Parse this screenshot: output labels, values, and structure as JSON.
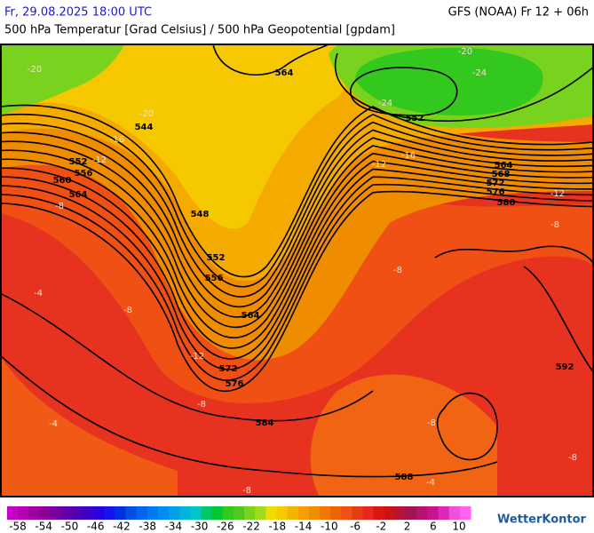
{
  "header": {
    "datetime": "Fr, 29.08.2025 18:00 UTC",
    "model": "GFS (NOAA) Fr 12 + 06h",
    "subtitle": "500 hPa Temperatur [Grad Celsius] / 500 hPa Geopotential [gpdam]"
  },
  "map": {
    "contour_labels": [
      "564",
      "544",
      "552",
      "552",
      "556",
      "560",
      "564",
      "548",
      "552",
      "556",
      "564",
      "572",
      "576",
      "584",
      "588",
      "564",
      "568",
      "572",
      "576",
      "580",
      "592"
    ],
    "temperature_labels": [
      "-20",
      "-24",
      "-24",
      "-20",
      "-20",
      "-16",
      "-12",
      "-12",
      "-16",
      "-12",
      "-8",
      "-8",
      "-4",
      "-8",
      "-8",
      "-8",
      "-4",
      "-8",
      "-8",
      "-4",
      "-8",
      "-12"
    ]
  },
  "colorbar": {
    "colors": [
      "#c800c8",
      "#b400b4",
      "#a000a0",
      "#8c0096",
      "#7800a0",
      "#6400aa",
      "#5000b4",
      "#3c00c8",
      "#2800dc",
      "#1414f0",
      "#0032dc",
      "#0050e6",
      "#0064f0",
      "#0078f0",
      "#008cf0",
      "#00a0e6",
      "#00b4dc",
      "#00c8c8",
      "#00c864",
      "#00c832",
      "#32c81e",
      "#50c81e",
      "#78d21e",
      "#a0dc1e",
      "#f0dc00",
      "#f5c800",
      "#f5b400",
      "#f5a000",
      "#f08c00",
      "#f07800",
      "#f06400",
      "#f05014",
      "#e63c14",
      "#e6281e",
      "#dc1414",
      "#c81414",
      "#b4143c",
      "#a01450",
      "#b4146e",
      "#c8148c",
      "#dc28b4",
      "#f050dc",
      "#ff64f0"
    ],
    "labels": [
      -58,
      -54,
      -50,
      -46,
      -42,
      -38,
      -34,
      -30,
      -26,
      -22,
      -18,
      -14,
      -10,
      -6,
      -2,
      2,
      6,
      10
    ]
  },
  "logo": "WetterKontor"
}
